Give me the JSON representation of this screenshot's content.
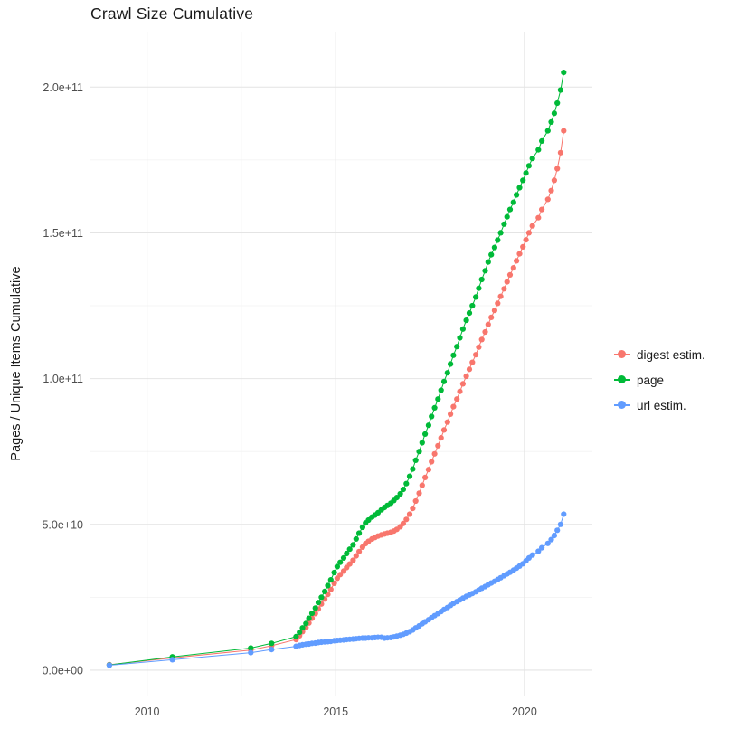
{
  "chart_data": {
    "type": "scatter",
    "title": "Crawl Size Cumulative",
    "xlabel": "",
    "ylabel": "Pages / Unique Items Cumulative",
    "grid": true,
    "legend_position": "right",
    "xlim": [
      2008.5,
      2021.8
    ],
    "ylim": [
      -9000000000.0,
      219000000000.0
    ],
    "x_ticks": [
      {
        "value": 2010,
        "label": "2010"
      },
      {
        "value": 2015,
        "label": "2015"
      },
      {
        "value": 2020,
        "label": "2020"
      }
    ],
    "y_ticks": [
      {
        "value": 0,
        "label": "0.0e+00"
      },
      {
        "value": 50000000000.0,
        "label": "5.0e+10"
      },
      {
        "value": 100000000000.0,
        "label": "1.0e+11"
      },
      {
        "value": 150000000000.0,
        "label": "1.5e+11"
      },
      {
        "value": 200000000000.0,
        "label": "2.0e+11"
      }
    ],
    "x_minor": [
      2012.5,
      2017.5
    ],
    "y_minor": [
      25000000000.0,
      75000000000.0,
      125000000000.0,
      175000000000.0
    ],
    "colors": {
      "grid_major": "#e4e4e4",
      "grid_minor": "#f2f2f2",
      "tick_label": "#4d4d4d",
      "text": "#1a1a1a",
      "background": "#ffffff"
    },
    "y_scale": 1000000000.0,
    "y_scale_note": "series point y-values are in billions (multiply by 1e9 to get pages)",
    "series": [
      {
        "name": "digest estim.",
        "color": "#F8766D",
        "points": [
          [
            2009.0,
            1.9
          ],
          [
            2010.67,
            4.2
          ],
          [
            2012.75,
            6.9
          ],
          [
            2013.3,
            8.4
          ],
          [
            2013.95,
            10.5
          ],
          [
            2014.04,
            11.8
          ],
          [
            2014.12,
            13.2
          ],
          [
            2014.21,
            14.6
          ],
          [
            2014.29,
            16.2
          ],
          [
            2014.37,
            17.8
          ],
          [
            2014.46,
            19.4
          ],
          [
            2014.54,
            21.0
          ],
          [
            2014.62,
            22.7
          ],
          [
            2014.71,
            24.4
          ],
          [
            2014.79,
            26.0
          ],
          [
            2014.87,
            27.7
          ],
          [
            2014.96,
            29.8
          ],
          [
            2015.04,
            31.5
          ],
          [
            2015.12,
            32.8
          ],
          [
            2015.21,
            34.0
          ],
          [
            2015.29,
            35.2
          ],
          [
            2015.37,
            36.4
          ],
          [
            2015.46,
            37.7
          ],
          [
            2015.54,
            39.2
          ],
          [
            2015.62,
            40.7
          ],
          [
            2015.71,
            42.2
          ],
          [
            2015.79,
            43.4
          ],
          [
            2015.87,
            44.2
          ],
          [
            2015.96,
            45.0
          ],
          [
            2016.04,
            45.5
          ],
          [
            2016.12,
            46.0
          ],
          [
            2016.21,
            46.4
          ],
          [
            2016.29,
            46.7
          ],
          [
            2016.37,
            47.0
          ],
          [
            2016.46,
            47.3
          ],
          [
            2016.54,
            47.7
          ],
          [
            2016.62,
            48.3
          ],
          [
            2016.71,
            49.2
          ],
          [
            2016.79,
            50.3
          ],
          [
            2016.87,
            51.7
          ],
          [
            2016.96,
            53.5
          ],
          [
            2017.04,
            55.5
          ],
          [
            2017.12,
            58.0
          ],
          [
            2017.21,
            60.7
          ],
          [
            2017.29,
            63.4
          ],
          [
            2017.37,
            66.1
          ],
          [
            2017.46,
            68.8
          ],
          [
            2017.54,
            71.5
          ],
          [
            2017.62,
            74.2
          ],
          [
            2017.71,
            77.0
          ],
          [
            2017.79,
            79.7
          ],
          [
            2017.87,
            82.4
          ],
          [
            2017.96,
            85.1
          ],
          [
            2018.04,
            87.8
          ],
          [
            2018.12,
            90.4
          ],
          [
            2018.21,
            93.0
          ],
          [
            2018.29,
            95.6
          ],
          [
            2018.37,
            98.2
          ],
          [
            2018.46,
            100.8
          ],
          [
            2018.54,
            103.2
          ],
          [
            2018.62,
            105.6
          ],
          [
            2018.71,
            108.2
          ],
          [
            2018.79,
            110.8
          ],
          [
            2018.87,
            113.4
          ],
          [
            2018.96,
            116.0
          ],
          [
            2019.04,
            118.6
          ],
          [
            2019.12,
            121.0
          ],
          [
            2019.21,
            123.4
          ],
          [
            2019.29,
            125.8
          ],
          [
            2019.37,
            128.2
          ],
          [
            2019.46,
            130.8
          ],
          [
            2019.54,
            133.2
          ],
          [
            2019.62,
            135.6
          ],
          [
            2019.71,
            138.0
          ],
          [
            2019.79,
            140.4
          ],
          [
            2019.87,
            142.8
          ],
          [
            2019.96,
            145.2
          ],
          [
            2020.04,
            147.6
          ],
          [
            2020.12,
            150.0
          ],
          [
            2020.21,
            152.4
          ],
          [
            2020.37,
            155.2
          ],
          [
            2020.46,
            158.0
          ],
          [
            2020.62,
            161.5
          ],
          [
            2020.71,
            164.5
          ],
          [
            2020.79,
            168.0
          ],
          [
            2020.87,
            172.0
          ],
          [
            2020.96,
            177.5
          ],
          [
            2021.04,
            185.0
          ]
        ]
      },
      {
        "name": "page",
        "color": "#00BA38",
        "points": [
          [
            2009.0,
            1.8
          ],
          [
            2010.67,
            4.6
          ],
          [
            2012.75,
            7.6
          ],
          [
            2013.3,
            9.2
          ],
          [
            2013.95,
            11.5
          ],
          [
            2014.04,
            13.0
          ],
          [
            2014.12,
            14.5
          ],
          [
            2014.21,
            16.0
          ],
          [
            2014.29,
            17.8
          ],
          [
            2014.37,
            19.5
          ],
          [
            2014.46,
            21.3
          ],
          [
            2014.54,
            23.2
          ],
          [
            2014.62,
            25.0
          ],
          [
            2014.71,
            27.0
          ],
          [
            2014.79,
            29.0
          ],
          [
            2014.87,
            31.0
          ],
          [
            2014.96,
            33.5
          ],
          [
            2015.04,
            35.5
          ],
          [
            2015.12,
            37.0
          ],
          [
            2015.21,
            38.5
          ],
          [
            2015.29,
            40.0
          ],
          [
            2015.37,
            41.5
          ],
          [
            2015.46,
            43.0
          ],
          [
            2015.54,
            45.0
          ],
          [
            2015.62,
            47.0
          ],
          [
            2015.71,
            49.0
          ],
          [
            2015.79,
            50.5
          ],
          [
            2015.87,
            51.5
          ],
          [
            2015.96,
            52.5
          ],
          [
            2016.04,
            53.2
          ],
          [
            2016.12,
            54.0
          ],
          [
            2016.21,
            55.0
          ],
          [
            2016.29,
            55.8
          ],
          [
            2016.37,
            56.5
          ],
          [
            2016.46,
            57.3
          ],
          [
            2016.54,
            58.2
          ],
          [
            2016.62,
            59.2
          ],
          [
            2016.71,
            60.5
          ],
          [
            2016.79,
            62.0
          ],
          [
            2016.87,
            64.0
          ],
          [
            2016.96,
            66.5
          ],
          [
            2017.04,
            69.0
          ],
          [
            2017.12,
            72.0
          ],
          [
            2017.21,
            75.0
          ],
          [
            2017.29,
            78.0
          ],
          [
            2017.37,
            81.0
          ],
          [
            2017.46,
            84.0
          ],
          [
            2017.54,
            87.0
          ],
          [
            2017.62,
            90.0
          ],
          [
            2017.71,
            93.0
          ],
          [
            2017.79,
            96.0
          ],
          [
            2017.87,
            99.0
          ],
          [
            2017.96,
            102.0
          ],
          [
            2018.04,
            105.0
          ],
          [
            2018.12,
            108.0
          ],
          [
            2018.21,
            111.0
          ],
          [
            2018.29,
            114.0
          ],
          [
            2018.37,
            117.0
          ],
          [
            2018.46,
            120.0
          ],
          [
            2018.54,
            122.5
          ],
          [
            2018.62,
            125.0
          ],
          [
            2018.71,
            128.0
          ],
          [
            2018.79,
            131.0
          ],
          [
            2018.87,
            134.0
          ],
          [
            2018.96,
            137.0
          ],
          [
            2019.04,
            140.0
          ],
          [
            2019.12,
            142.5
          ],
          [
            2019.21,
            145.0
          ],
          [
            2019.29,
            147.5
          ],
          [
            2019.37,
            150.0
          ],
          [
            2019.46,
            153.0
          ],
          [
            2019.54,
            155.5
          ],
          [
            2019.62,
            158.0
          ],
          [
            2019.71,
            160.5
          ],
          [
            2019.79,
            163.0
          ],
          [
            2019.87,
            165.5
          ],
          [
            2019.96,
            168.0
          ],
          [
            2020.04,
            170.5
          ],
          [
            2020.12,
            173.0
          ],
          [
            2020.21,
            175.5
          ],
          [
            2020.37,
            178.5
          ],
          [
            2020.46,
            181.5
          ],
          [
            2020.62,
            185.0
          ],
          [
            2020.71,
            188.0
          ],
          [
            2020.79,
            191.0
          ],
          [
            2020.87,
            194.5
          ],
          [
            2020.96,
            199.0
          ],
          [
            2021.04,
            205.0
          ]
        ]
      },
      {
        "name": "url estim.",
        "color": "#619CFF",
        "points": [
          [
            2009.0,
            1.7
          ],
          [
            2010.67,
            3.6
          ],
          [
            2012.75,
            6.0
          ],
          [
            2013.3,
            7.1
          ],
          [
            2013.95,
            8.2
          ],
          [
            2014.04,
            8.5
          ],
          [
            2014.12,
            8.7
          ],
          [
            2014.21,
            8.9
          ],
          [
            2014.29,
            9.0
          ],
          [
            2014.37,
            9.2
          ],
          [
            2014.46,
            9.3
          ],
          [
            2014.54,
            9.5
          ],
          [
            2014.62,
            9.6
          ],
          [
            2014.71,
            9.7
          ],
          [
            2014.79,
            9.8
          ],
          [
            2014.87,
            9.9
          ],
          [
            2014.96,
            10.1
          ],
          [
            2015.04,
            10.2
          ],
          [
            2015.12,
            10.3
          ],
          [
            2015.21,
            10.4
          ],
          [
            2015.29,
            10.5
          ],
          [
            2015.37,
            10.6
          ],
          [
            2015.46,
            10.7
          ],
          [
            2015.54,
            10.8
          ],
          [
            2015.62,
            10.9
          ],
          [
            2015.71,
            11.0
          ],
          [
            2015.79,
            11.0
          ],
          [
            2015.87,
            11.1
          ],
          [
            2015.96,
            11.1
          ],
          [
            2016.04,
            11.2
          ],
          [
            2016.12,
            11.3
          ],
          [
            2016.21,
            11.3
          ],
          [
            2016.29,
            11.0
          ],
          [
            2016.37,
            11.1
          ],
          [
            2016.46,
            11.2
          ],
          [
            2016.54,
            11.4
          ],
          [
            2016.62,
            11.7
          ],
          [
            2016.71,
            12.0
          ],
          [
            2016.79,
            12.3
          ],
          [
            2016.87,
            12.7
          ],
          [
            2016.96,
            13.2
          ],
          [
            2017.04,
            13.8
          ],
          [
            2017.12,
            14.5
          ],
          [
            2017.21,
            15.2
          ],
          [
            2017.29,
            15.9
          ],
          [
            2017.37,
            16.6
          ],
          [
            2017.46,
            17.3
          ],
          [
            2017.54,
            18.0
          ],
          [
            2017.62,
            18.7
          ],
          [
            2017.71,
            19.4
          ],
          [
            2017.79,
            20.1
          ],
          [
            2017.87,
            20.8
          ],
          [
            2017.96,
            21.5
          ],
          [
            2018.04,
            22.2
          ],
          [
            2018.12,
            22.9
          ],
          [
            2018.21,
            23.5
          ],
          [
            2018.29,
            24.1
          ],
          [
            2018.37,
            24.7
          ],
          [
            2018.46,
            25.3
          ],
          [
            2018.54,
            25.8
          ],
          [
            2018.62,
            26.3
          ],
          [
            2018.71,
            26.9
          ],
          [
            2018.79,
            27.5
          ],
          [
            2018.87,
            28.1
          ],
          [
            2018.96,
            28.7
          ],
          [
            2019.04,
            29.3
          ],
          [
            2019.12,
            29.9
          ],
          [
            2019.21,
            30.5
          ],
          [
            2019.29,
            31.1
          ],
          [
            2019.37,
            31.7
          ],
          [
            2019.46,
            32.4
          ],
          [
            2019.54,
            33.0
          ],
          [
            2019.62,
            33.6
          ],
          [
            2019.71,
            34.3
          ],
          [
            2019.79,
            35.0
          ],
          [
            2019.87,
            35.7
          ],
          [
            2019.96,
            36.5
          ],
          [
            2020.04,
            37.5
          ],
          [
            2020.12,
            38.5
          ],
          [
            2020.21,
            39.5
          ],
          [
            2020.37,
            40.8
          ],
          [
            2020.46,
            42.0
          ],
          [
            2020.62,
            43.5
          ],
          [
            2020.71,
            44.8
          ],
          [
            2020.79,
            46.2
          ],
          [
            2020.87,
            48.0
          ],
          [
            2020.96,
            50.0
          ],
          [
            2021.04,
            53.5
          ]
        ]
      }
    ]
  }
}
